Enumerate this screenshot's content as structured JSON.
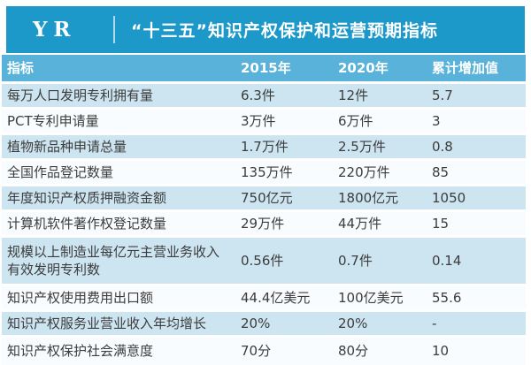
{
  "banner": {
    "logo": "YR",
    "title": "“十三五”知识产权保护和运营预期指标"
  },
  "table": {
    "headers": [
      "指标",
      "2015年",
      "2020年",
      "累计增加值"
    ],
    "rows": [
      {
        "indicator": "每万人口发明专利拥有量",
        "y2015": "6.3件",
        "y2020": "12件",
        "increase": "5.7"
      },
      {
        "indicator": "PCT专利申请量",
        "y2015": "3万件",
        "y2020": "6万件",
        "increase": "3"
      },
      {
        "indicator": "植物新品种申请总量",
        "y2015": "1.7万件",
        "y2020": "2.5万件",
        "increase": "0.8"
      },
      {
        "indicator": "全国作品登记数量",
        "y2015": "135万件",
        "y2020": "220万件",
        "increase": "85"
      },
      {
        "indicator": "年度知识产权质押融资金额",
        "y2015": "750亿元",
        "y2020": "1800亿元",
        "increase": "1050"
      },
      {
        "indicator": "计算机软件著作权登记数量",
        "y2015": "29万件",
        "y2020": "44万件",
        "increase": "15"
      },
      {
        "indicator": "规模以上制造业每亿元主营业务收入有效发明专利数",
        "y2015": "0.56件",
        "y2020": "0.7件",
        "increase": "0.14"
      },
      {
        "indicator": "知识产权使用费用出口额",
        "y2015": "44.4亿美元",
        "y2020": "100亿美元",
        "increase": "55.6"
      },
      {
        "indicator": "知识产权服务业营业收入年均增长",
        "y2015": "20%",
        "y2020": "20%",
        "increase": "-"
      },
      {
        "indicator": "知识产权保护社会满意度",
        "y2015": "70分",
        "y2020": "80分",
        "increase": "10"
      }
    ]
  },
  "colors": {
    "banner_bg": "#1C98C9",
    "header_row_bg": "#58B2DA",
    "row_alt_bg": "#CDE5F1",
    "row_bg": "#F9FCFE",
    "text": "#3C3C3C"
  }
}
